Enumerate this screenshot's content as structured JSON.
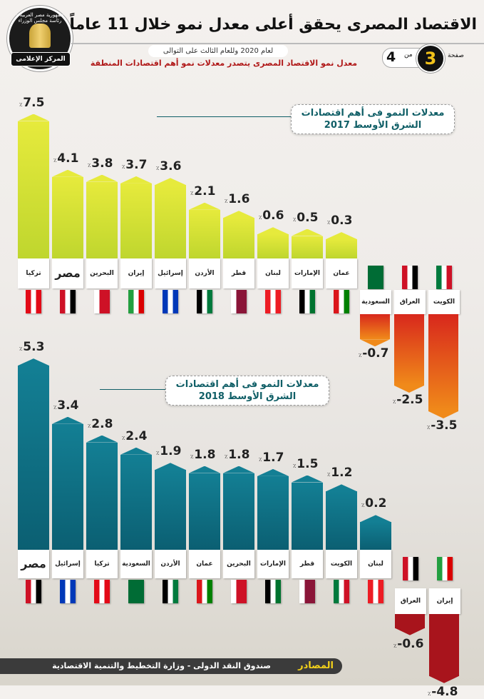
{
  "header": {
    "title": "الاقتصاد المصرى يحقق أعلى معدل نمو خلال 11 عاماً",
    "subtitle": "لعام 2020 وللعام الثالث على التوالى",
    "highlight": "معدل نمو الاقتصاد المصرى يتصدر معدلات نمو أهم اقتصادات المنطقة",
    "page_label": "صفحة",
    "page_current": "3",
    "page_of": "من",
    "page_total": "4"
  },
  "logo": {
    "ring_text": "جمهورية مصر العربية - رئاسة مجلس الوزراء",
    "band_text": "المركز الإعلامى"
  },
  "percent_sign": "٪",
  "colors": {
    "positive_2017": "#cddc2c",
    "negative_2017_light": "#f08a1a",
    "negative_2017_dark": "#d8281c",
    "positive_2018": "#0e7489",
    "negative_2018": "#a8141c"
  },
  "flags": {
    "تركيا": [
      "#e30a17",
      "#ffffff",
      "#e30a17"
    ],
    "مصر": [
      "#ce1126",
      "#ffffff",
      "#000000"
    ],
    "البحرين": [
      "#ffffff",
      "#ce1126",
      "#ce1126"
    ],
    "إيران": [
      "#239f40",
      "#ffffff",
      "#da0000"
    ],
    "إسرائيل": [
      "#0038b8",
      "#ffffff",
      "#0038b8"
    ],
    "الأردن": [
      "#000000",
      "#ffffff",
      "#007a3d"
    ],
    "قطر": [
      "#ffffff",
      "#8a1538",
      "#8a1538"
    ],
    "لبنان": [
      "#ed1c24",
      "#ffffff",
      "#ed1c24"
    ],
    "الإمارات": [
      "#000000",
      "#ffffff",
      "#00732f"
    ],
    "عمان": [
      "#db161b",
      "#ffffff",
      "#008000"
    ],
    "السعودية": [
      "#006c35",
      "#006c35",
      "#006c35"
    ],
    "العراق": [
      "#ce1126",
      "#ffffff",
      "#000000"
    ],
    "الكويت": [
      "#007a3d",
      "#ffffff",
      "#ce1126"
    ]
  },
  "chart_data": [
    {
      "type": "bar",
      "title": "معدلات النمو فى أهم اقتصادات الشرق الأوسط 2017",
      "categories": [
        "تركيا",
        "مصر",
        "البحرين",
        "إيران",
        "إسرائيل",
        "الأردن",
        "قطر",
        "لبنان",
        "الإمارات",
        "عمان",
        "السعودية",
        "العراق",
        "الكويت"
      ],
      "values": [
        7.5,
        4.1,
        3.8,
        3.7,
        3.6,
        2.1,
        1.6,
        0.6,
        0.5,
        0.3,
        -0.7,
        -2.5,
        -3.5
      ],
      "unit": "٪"
    },
    {
      "type": "bar",
      "title": "معدلات النمو فى أهم اقتصادات الشرق الأوسط 2018",
      "categories": [
        "مصر",
        "إسرائيل",
        "تركيا",
        "السعودية",
        "الأردن",
        "عمان",
        "البحرين",
        "الإمارات",
        "قطر",
        "الكويت",
        "لبنان",
        "العراق",
        "إيران"
      ],
      "values": [
        5.3,
        3.4,
        2.8,
        2.4,
        1.9,
        1.8,
        1.8,
        1.7,
        1.5,
        1.2,
        0.2,
        -0.6,
        -4.8
      ],
      "unit": "٪"
    }
  ],
  "footer": {
    "sources_label": "المصادر",
    "sources_text": "صندوق النقد الدولى - وزارة التخطيط والتنمية الاقتصادية"
  }
}
